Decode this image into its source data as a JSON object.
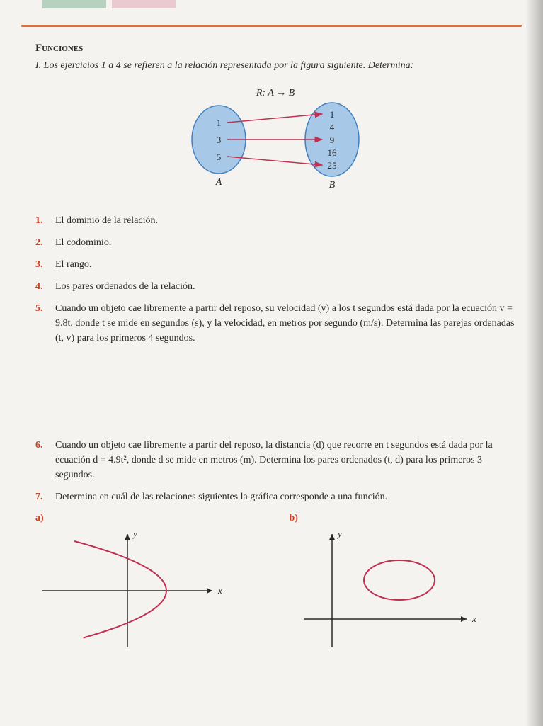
{
  "section_title": "Funciones",
  "instruction": "I. Los ejercicios 1 a 4 se refieren a la relación representada por la figura siguiente. Determina:",
  "mapping": {
    "relation_label": "R: A → B",
    "set_a_label": "A",
    "set_b_label": "B",
    "set_a": [
      "1",
      "3",
      "5"
    ],
    "set_b": [
      "1",
      "4",
      "9",
      "16",
      "25"
    ],
    "arrows": [
      {
        "from": 0,
        "to": 0
      },
      {
        "from": 1,
        "to": 2
      },
      {
        "from": 2,
        "to": 4
      }
    ],
    "circle_fill": "#a8c8e8",
    "circle_stroke": "#4080c0",
    "arrow_color": "#c03050",
    "text_color": "#2a2a2a"
  },
  "questions": [
    {
      "num": "1.",
      "text": "El dominio de la relación."
    },
    {
      "num": "2.",
      "text": "El codominio."
    },
    {
      "num": "3.",
      "text": "El rango."
    },
    {
      "num": "4.",
      "text": "Los pares ordenados de la relación."
    },
    {
      "num": "5.",
      "text": "Cuando un objeto cae libremente a partir del reposo, su velocidad (v) a los t segundos está dada por la ecuación v = 9.8t, donde t se mide en segundos (s), y la velocidad, en metros por segundo (m/s). Determina las parejas ordenadas (t, v) para los primeros 4 segundos."
    },
    {
      "num": "6.",
      "text": "Cuando un objeto cae libremente a partir del reposo, la distancia (d) que recorre en t segundos está dada por la ecuación d = 4.9t², donde d se mide en metros (m). Determina los pares ordenados (t, d) para los primeros 3 segundos."
    },
    {
      "num": "7.",
      "text": "Determina en cuál de las relaciones siguientes la gráfica corresponde a una función."
    }
  ],
  "graphs": {
    "a_label": "a)",
    "b_label": "b)",
    "axis_color": "#2a2a2a",
    "curve_color": "#c03050",
    "x_label": "x",
    "y_label": "y",
    "a": {
      "type": "sideways-parabola"
    },
    "b": {
      "type": "ellipse"
    }
  }
}
